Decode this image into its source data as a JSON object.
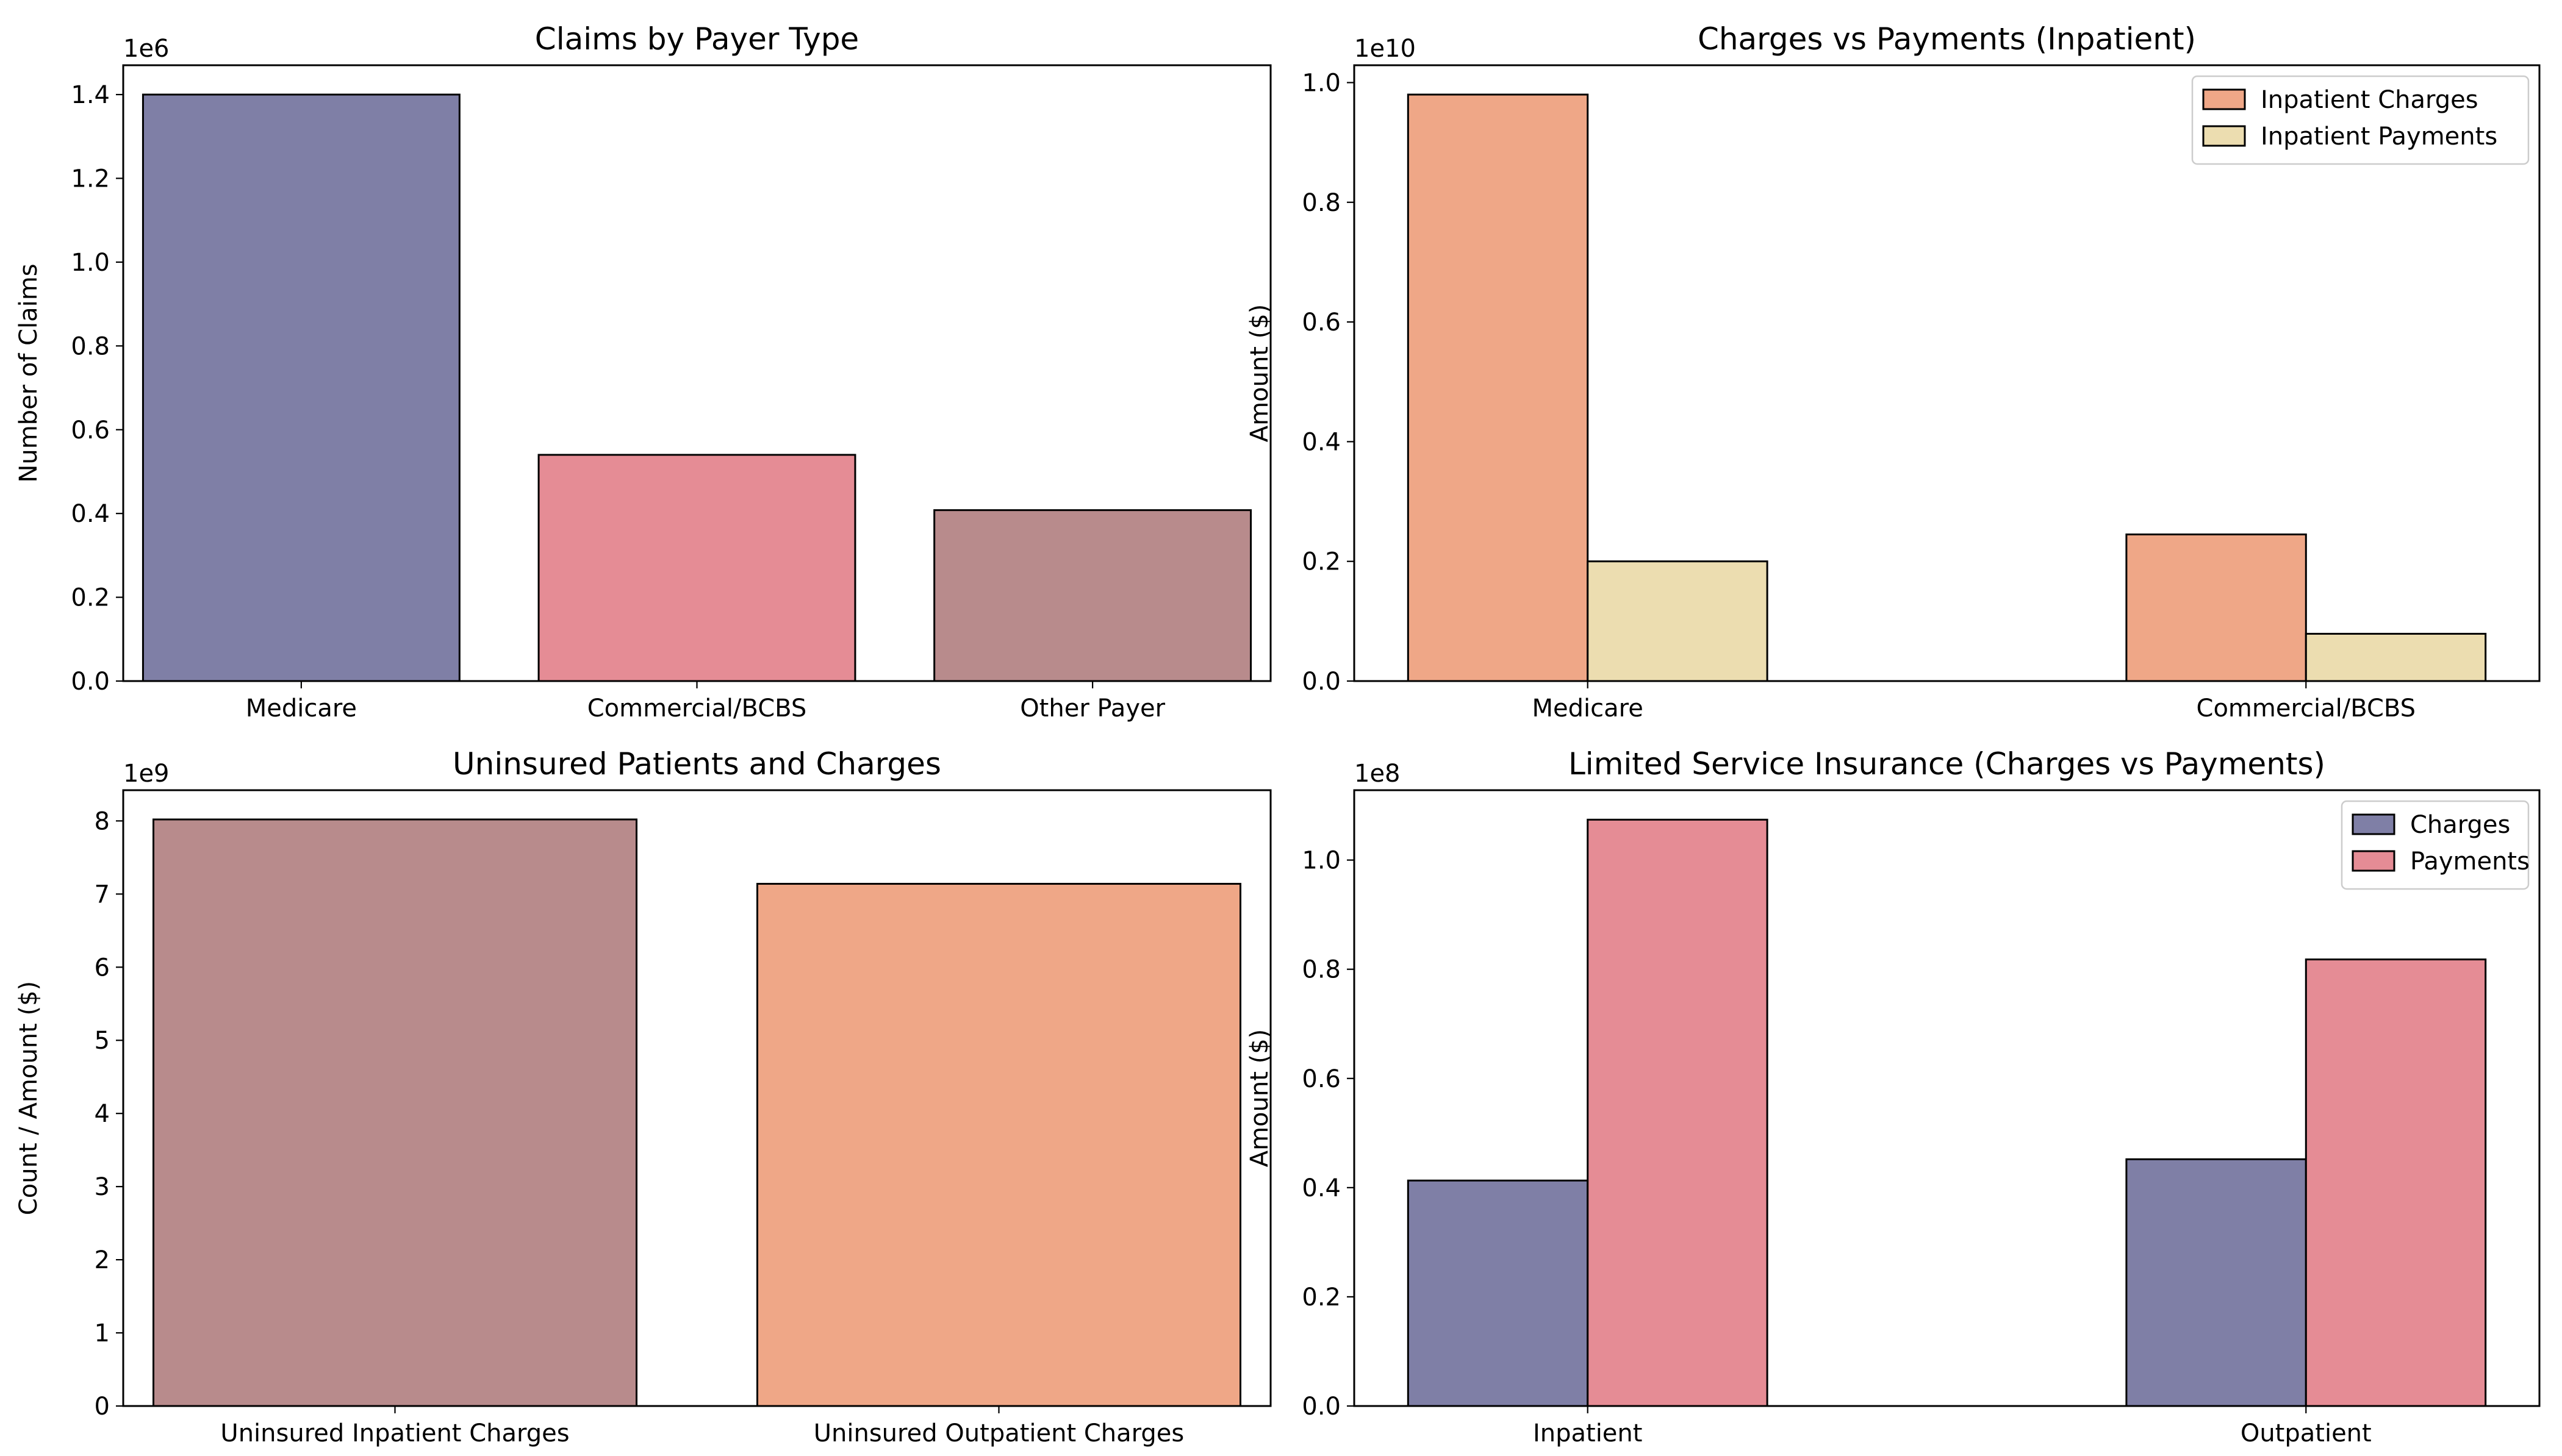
{
  "chart_data": [
    {
      "type": "bar",
      "title": "Claims by Payer Type",
      "xlabel": "",
      "ylabel": "Number of Claims",
      "offset_label": "1e6",
      "categories": [
        "Medicare",
        "Commercial/BCBS",
        "Other Payer"
      ],
      "values": [
        1400000,
        540000,
        408000
      ],
      "colors": [
        "#7f7fa6",
        "#e58c95",
        "#b88b8c"
      ],
      "ylim": [
        0,
        1470000
      ],
      "yticks": [
        0,
        200000,
        400000,
        600000,
        800000,
        1000000,
        1200000,
        1400000
      ],
      "ytick_labels": [
        "0.0",
        "0.2",
        "0.4",
        "0.6",
        "0.8",
        "1.0",
        "1.2",
        "1.4"
      ],
      "grid": false
    },
    {
      "type": "bar",
      "title": "Charges vs Payments (Inpatient)",
      "xlabel": "",
      "ylabel": "Amount ($)",
      "offset_label": "1e10",
      "categories": [
        "Medicare",
        "Commercial/BCBS"
      ],
      "series": [
        {
          "name": "Inpatient Charges",
          "values": [
            9800000000,
            2450000000
          ],
          "color": "#efa787"
        },
        {
          "name": "Inpatient Payments",
          "values": [
            2000000000,
            790000000
          ],
          "color": "#ecddb0"
        }
      ],
      "ylim": [
        0,
        10290000000
      ],
      "yticks": [
        0,
        2000000000,
        4000000000,
        6000000000,
        8000000000,
        10000000000
      ],
      "ytick_labels": [
        "0.0",
        "0.2",
        "0.4",
        "0.6",
        "0.8",
        "1.0"
      ],
      "legend": "top-right",
      "grid": false
    },
    {
      "type": "bar",
      "title": "Uninsured Patients and Charges",
      "xlabel": "",
      "ylabel": "Count / Amount ($)",
      "offset_label": "1e9",
      "categories": [
        "Uninsured Inpatient Charges",
        "Uninsured Outpatient Charges"
      ],
      "values": [
        8020000000,
        7140000000
      ],
      "colors": [
        "#b88b8c",
        "#efa787"
      ],
      "ylim": [
        0,
        8420000000
      ],
      "yticks": [
        0,
        1000000000,
        2000000000,
        3000000000,
        4000000000,
        5000000000,
        6000000000,
        7000000000,
        8000000000
      ],
      "ytick_labels": [
        "0",
        "1",
        "2",
        "3",
        "4",
        "5",
        "6",
        "7",
        "8"
      ],
      "grid": false
    },
    {
      "type": "bar",
      "title": "Limited Service Insurance (Charges vs Payments)",
      "xlabel": "",
      "ylabel": "Amount ($)",
      "offset_label": "1e8",
      "categories": [
        "Inpatient",
        "Outpatient"
      ],
      "series": [
        {
          "name": "Charges",
          "values": [
            41300000,
            45200000
          ],
          "color": "#7f7fa6"
        },
        {
          "name": "Payments",
          "values": [
            107400000,
            81800000
          ],
          "color": "#e58c95"
        }
      ],
      "ylim": [
        0,
        112800000
      ],
      "yticks": [
        0,
        20000000,
        40000000,
        60000000,
        80000000,
        100000000
      ],
      "ytick_labels": [
        "0.0",
        "0.2",
        "0.4",
        "0.6",
        "0.8",
        "1.0"
      ],
      "legend": "top-right",
      "grid": false
    }
  ]
}
